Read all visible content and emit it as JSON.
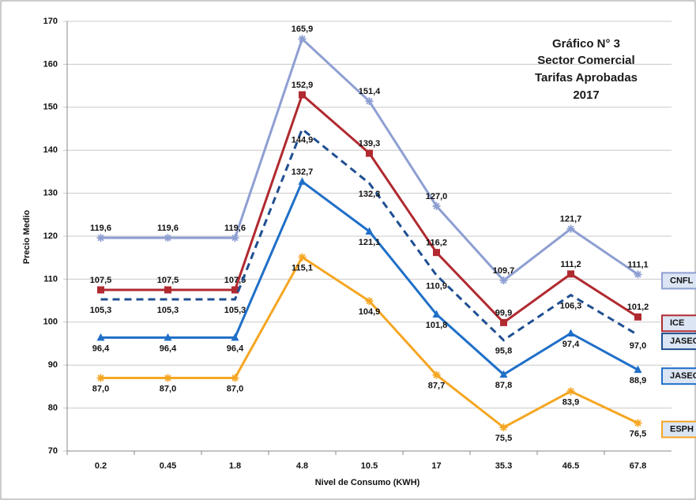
{
  "chart_data": {
    "type": "line",
    "title_lines": [
      "Gráfico N° 3",
      "Sector Comercial",
      "Tarifas Aprobadas",
      "2017"
    ],
    "x_label": "Nivel de Consumo (KWH)",
    "y_label": "Precio Medio",
    "categories": [
      "0.2",
      "0.45",
      "1.8",
      "4.8",
      "10.5",
      "17",
      "35.3",
      "46.5",
      "67.8"
    ],
    "ylim": [
      70,
      170
    ],
    "yticks": [
      70,
      80,
      90,
      100,
      110,
      120,
      130,
      140,
      150,
      160,
      170
    ],
    "grid": true,
    "series": [
      {
        "name": "CNFL",
        "color": "#8e9fd2",
        "marker": "star",
        "dash": false,
        "values": [
          119.6,
          119.6,
          119.6,
          165.9,
          151.4,
          127.0,
          109.7,
          121.7,
          111.1
        ],
        "value_labels": [
          "119,6",
          "119,6",
          "119,6",
          "165,9",
          "151,4",
          "127,0",
          "109,7",
          "121,7",
          "111,1"
        ]
      },
      {
        "name": "ICE",
        "color": "#b02a30",
        "marker": "square",
        "dash": false,
        "values": [
          107.5,
          107.5,
          107.5,
          152.9,
          139.3,
          116.2,
          99.9,
          111.2,
          101.2
        ],
        "value_labels": [
          "107,5",
          "107,5",
          "107,5",
          "152,9",
          "139,3",
          "116,2",
          "99,9",
          "111,2",
          "101,2"
        ]
      },
      {
        "name": "JASEC Pro",
        "color": "#1f4f91",
        "marker": "none",
        "dash": true,
        "values": [
          105.3,
          105.3,
          105.3,
          144.9,
          132.3,
          110.9,
          95.8,
          106.3,
          97.0
        ],
        "value_labels": [
          "105,3",
          "105,3",
          "105,3",
          "144,9",
          "132,3",
          "110,9",
          "95,8",
          "106,3",
          "97,0"
        ]
      },
      {
        "name": "JASEC Ac",
        "color": "#1f6fc8",
        "marker": "triangle",
        "dash": false,
        "values": [
          96.4,
          96.4,
          96.4,
          132.7,
          121.1,
          101.8,
          87.8,
          97.4,
          88.9
        ],
        "value_labels": [
          "96,4",
          "96,4",
          "96,4",
          "132,7",
          "121,1",
          "101,8",
          "87,8",
          "97,4",
          "88,9"
        ]
      },
      {
        "name": "ESPH",
        "color": "#f5a623",
        "marker": "star",
        "dash": false,
        "values": [
          87.0,
          87.0,
          87.0,
          115.1,
          104.9,
          87.7,
          75.5,
          83.9,
          76.5
        ],
        "value_labels": [
          "87,0",
          "87,0",
          "87,0",
          "115,1",
          "104,9",
          "87,7",
          "75,5",
          "83,9",
          "76,5"
        ]
      }
    ]
  }
}
